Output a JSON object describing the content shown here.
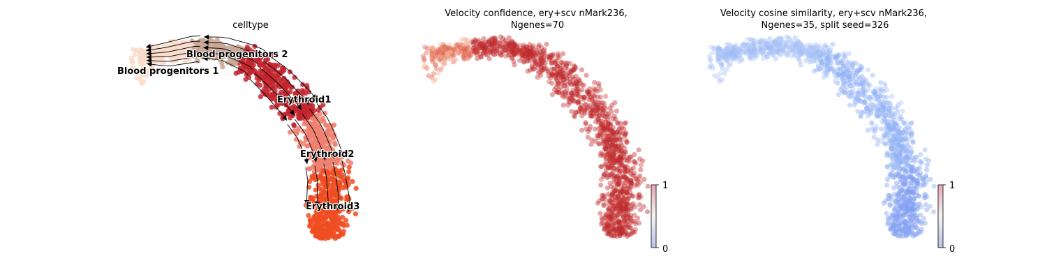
{
  "chart_data": [
    {
      "type": "scatter",
      "title": "celltype",
      "embedding": "umap",
      "legend": "on data",
      "streamlines": true,
      "clusters": [
        {
          "name": "Blood progenitors 1",
          "color": "#f9dccb"
        },
        {
          "name": "Blood progenitors 2",
          "color": "#c9a796"
        },
        {
          "name": "Erythroid1",
          "color": "#c3262f"
        },
        {
          "name": "Erythroid2",
          "color": "#f08070"
        },
        {
          "name": "Erythroid3",
          "color": "#ef4d22"
        }
      ]
    },
    {
      "type": "scatter",
      "title_line1": "Velocity confidence, ery+scv nMark236,",
      "title_line2": "Ngenes=70",
      "colormap": "coolwarm",
      "colorbar": {
        "min": 0,
        "max": 1,
        "ticks": [
          "1",
          "0"
        ]
      },
      "dominant_color": "#be2a2e"
    },
    {
      "type": "scatter",
      "title_line1": "Velocity cosine similarity, ery+scv nMark236,",
      "title_line2": "Ngenes=35, split seed=326",
      "colormap": "coolwarm",
      "colorbar": {
        "min": 0,
        "max": 1,
        "ticks": [
          "1",
          "0"
        ]
      },
      "dominant_color": "#8fb0f5"
    }
  ]
}
